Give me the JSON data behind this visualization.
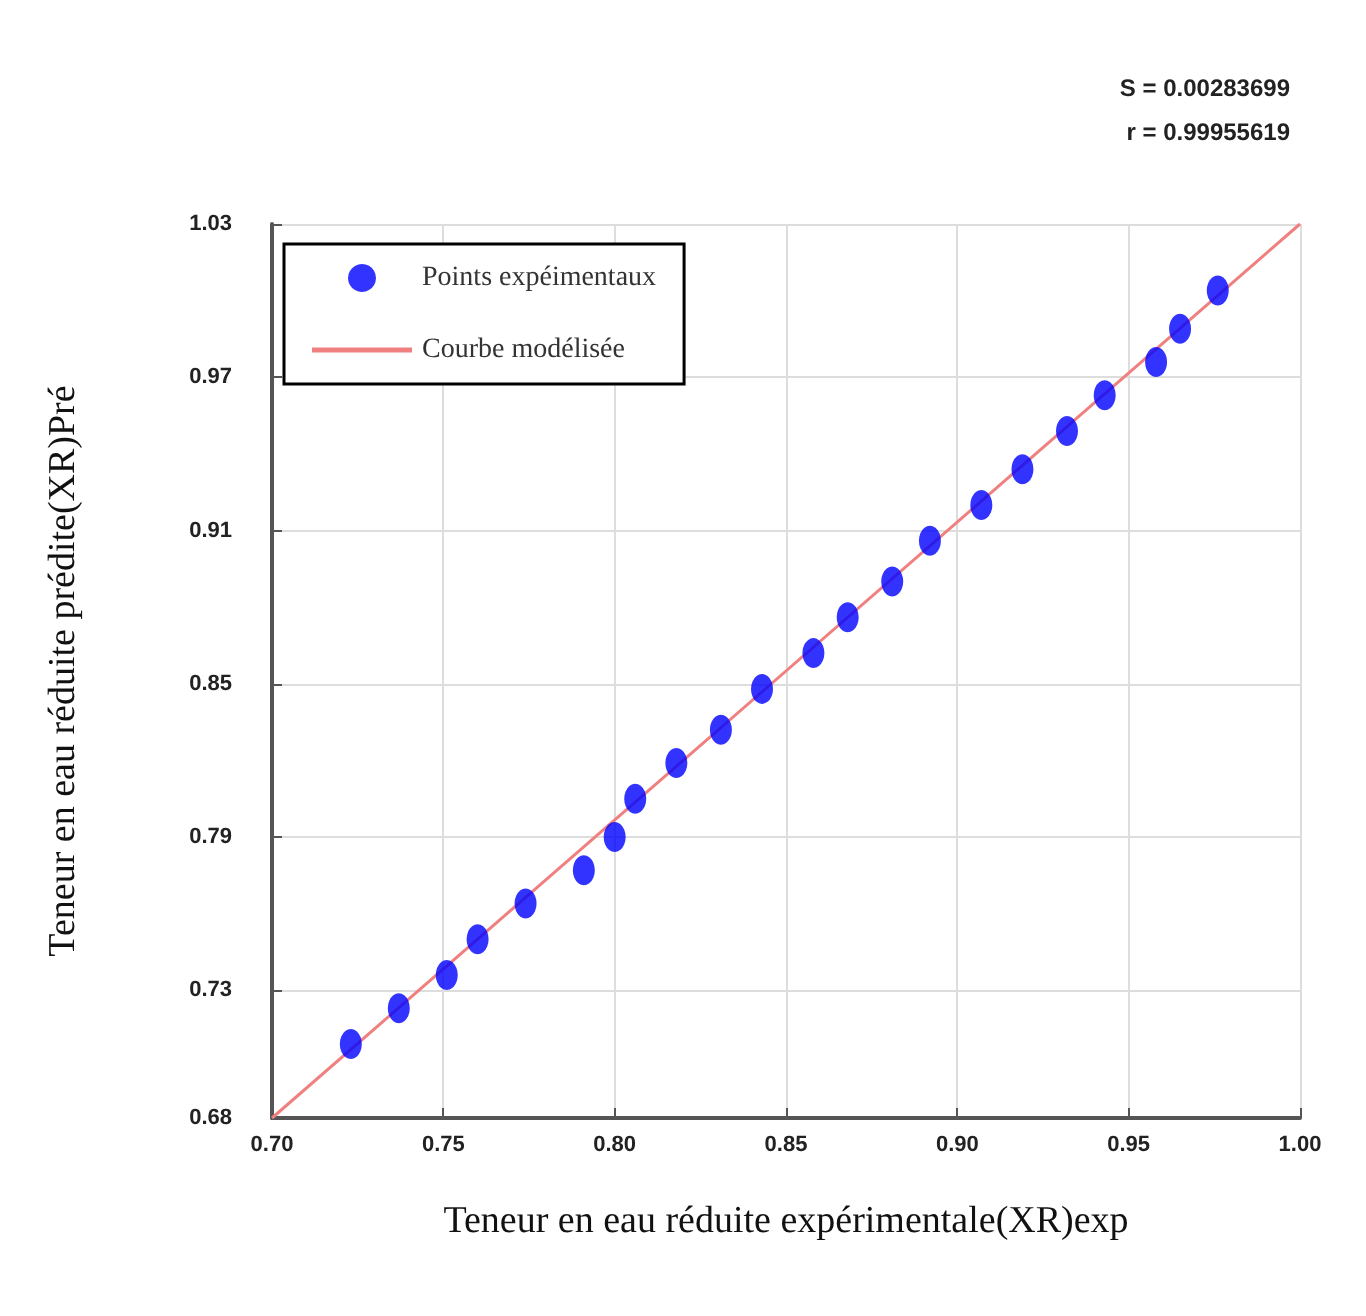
{
  "chart_data": {
    "type": "scatter",
    "xlabel": "Teneur en eau réduite expérimentale(XR)exp",
    "ylabel": "Teneur en eau réduite prédite(XR)Pré",
    "annotations": [
      "S = 0.00283699",
      "r = 0.99955619"
    ],
    "series": [
      {
        "name": "Points expéimentaux",
        "type": "scatter",
        "color": "#0000ff",
        "marker": "circle",
        "x": [
          0.723,
          0.737,
          0.751,
          0.76,
          0.774,
          0.791,
          0.8,
          0.806,
          0.818,
          0.831,
          0.843,
          0.858,
          0.868,
          0.881,
          0.892,
          0.907,
          0.919,
          0.932,
          0.943,
          0.958,
          0.965,
          0.976
        ],
        "values": [
          0.709,
          0.723,
          0.736,
          0.75,
          0.764,
          0.777,
          0.79,
          0.805,
          0.819,
          0.832,
          0.848,
          0.862,
          0.876,
          0.89,
          0.906,
          0.92,
          0.934,
          0.949,
          0.963,
          0.976,
          0.989,
          1.004
        ]
      },
      {
        "name": "Courbe modélisée",
        "type": "line",
        "color": "#f08080",
        "marker": "none",
        "x": [
          0.7,
          1.0
        ],
        "values": [
          0.68,
          1.03
        ]
      }
    ],
    "xlim": [
      0.7,
      1.0
    ],
    "xticks": [
      {
        "value": 0.7,
        "label": "0.70"
      },
      {
        "value": 0.75,
        "label": "0.75"
      },
      {
        "value": 0.8,
        "label": "0.80"
      },
      {
        "value": 0.85,
        "label": "0.85"
      },
      {
        "value": 0.9,
        "label": "0.90"
      },
      {
        "value": 0.95,
        "label": "0.95"
      },
      {
        "value": 1.0,
        "label": "1.00"
      }
    ],
    "ylim": [
      0.68,
      1.03
    ],
    "yticks": [
      0.68,
      0.73,
      0.79,
      0.85,
      0.91,
      0.97,
      1.03
    ],
    "grid": true,
    "legend": "top left"
  }
}
